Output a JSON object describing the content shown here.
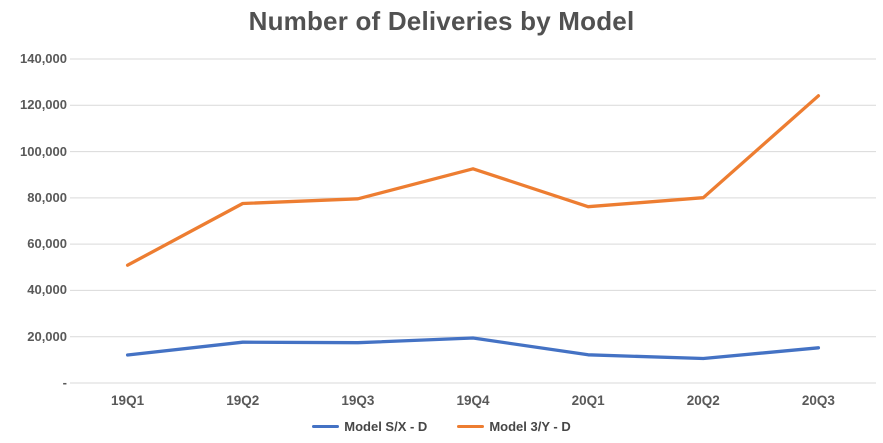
{
  "chart_data": {
    "type": "line",
    "title": "Number of Deliveries by Model",
    "xlabel": "",
    "ylabel": "",
    "categories": [
      "19Q1",
      "19Q2",
      "19Q3",
      "19Q4",
      "20Q1",
      "20Q2",
      "20Q3"
    ],
    "series": [
      {
        "name": "Model S/X - D",
        "color": "#4472C4",
        "values": [
          12100,
          17650,
          17400,
          19450,
          12200,
          10600,
          15200
        ]
      },
      {
        "name": "Model 3/Y - D",
        "color": "#ED7D31",
        "values": [
          50900,
          77550,
          79600,
          92550,
          76200,
          80050,
          124100
        ]
      }
    ],
    "ylim": [
      0,
      140000
    ],
    "y_ticks": [
      {
        "value": 0,
        "label": "-"
      },
      {
        "value": 20000,
        "label": "20,000"
      },
      {
        "value": 40000,
        "label": "40,000"
      },
      {
        "value": 60000,
        "label": "60,000"
      },
      {
        "value": 80000,
        "label": "80,000"
      },
      {
        "value": 100000,
        "label": "100,000"
      },
      {
        "value": 120000,
        "label": "120,000"
      },
      {
        "value": 140000,
        "label": "140,000"
      }
    ],
    "grid": true,
    "gridline_color": "#D9D9D9",
    "legend_position": "bottom"
  }
}
